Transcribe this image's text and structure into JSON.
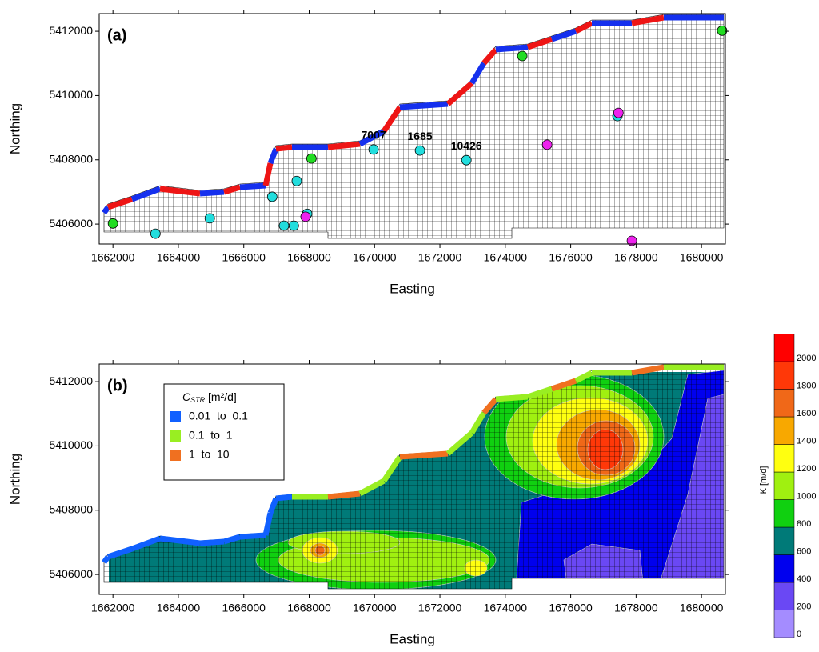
{
  "chart_data": [
    {
      "type": "scatter",
      "title": "(a)",
      "x_label": "Easting",
      "y_label": "Northing",
      "xlim": [
        1661580,
        1680730
      ],
      "ylim": [
        5405380,
        5412550
      ],
      "xticks": [
        1662000,
        1664000,
        1666000,
        1668000,
        1670000,
        1672000,
        1674000,
        1676000,
        1678000,
        1680000
      ],
      "yticks": [
        5406000,
        5408000,
        5410000,
        5412000
      ],
      "series": [
        {
          "color": "#22dd22",
          "x": [
            1662000,
            1668070,
            1674520,
            1680630
          ],
          "y": [
            5406020,
            5408040,
            5411230,
            5412020
          ]
        },
        {
          "color": "#22dddd",
          "x": [
            1663300,
            1664960,
            1666870,
            1667620,
            1667940,
            1667230,
            1667530,
            1669970,
            1671390,
            1672810,
            1677430
          ],
          "y": [
            5405700,
            5406180,
            5406850,
            5407340,
            5406320,
            5405950,
            5405950,
            5408320,
            5408290,
            5407990,
            5409360
          ]
        },
        {
          "color": "#ee22ee",
          "x": [
            1667890,
            1675280,
            1677460,
            1677870
          ],
          "y": [
            5406230,
            5408470,
            5409460,
            5405480
          ]
        }
      ],
      "annotations": [
        {
          "text": "7007",
          "x": 1669970,
          "y": 5408320
        },
        {
          "text": "1685",
          "x": 1671390,
          "y": 5408290
        },
        {
          "text": "10426",
          "x": 1672810,
          "y": 5407990
        }
      ]
    },
    {
      "type": "contour",
      "title": "(b)",
      "x_label": "Easting",
      "y_label": "Northing",
      "xlim": [
        1661580,
        1680730
      ],
      "ylim": [
        5405380,
        5412550
      ],
      "xticks": [
        1662000,
        1664000,
        1666000,
        1668000,
        1670000,
        1672000,
        1674000,
        1676000,
        1678000,
        1680000
      ],
      "yticks": [
        5406000,
        5408000,
        5410000,
        5412000
      ],
      "legend_title": {
        "symbol": "C",
        "subscript": "STR",
        "unit": "[m²/d]"
      },
      "series": [
        {
          "name": "0.01  to  0.1",
          "color": "#1060ff"
        },
        {
          "name": "0.1  to  1",
          "color": "#99ee22"
        },
        {
          "name": "1  to  10",
          "color": "#f07020"
        }
      ],
      "colorbar": {
        "label": "K [m/d]",
        "ticks": [
          0,
          200,
          400,
          600,
          800,
          1000,
          1200,
          1400,
          1600,
          1800,
          2000
        ],
        "colors": [
          "#a48cff",
          "#6a48f4",
          "#0000ee",
          "#007a78",
          "#10d010",
          "#a0f010",
          "#ffff10",
          "#f8a800",
          "#f06818",
          "#ff3808",
          "#ff0000"
        ]
      }
    }
  ]
}
